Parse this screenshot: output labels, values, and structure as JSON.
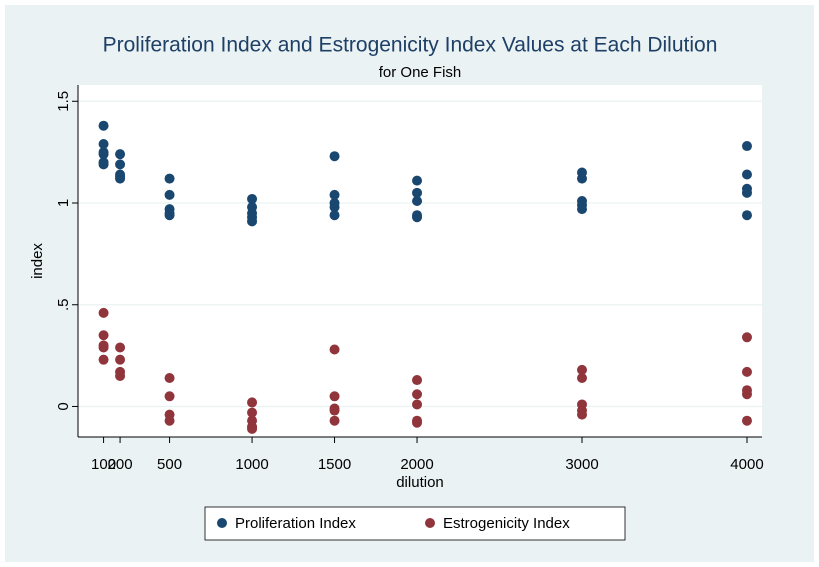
{
  "chart_data": {
    "type": "scatter",
    "title": "Proliferation Index and Estrogenicity Index Values at Each Dilution",
    "subtitle": "for One Fish",
    "x_label": "dilution",
    "y_label": "index",
    "xlim": [
      -55,
      4091
    ],
    "ylim": [
      -0.15,
      1.58
    ],
    "xticks": [
      100,
      200,
      500,
      1000,
      1500,
      2000,
      3000,
      4000
    ],
    "yticks": [
      0,
      {
        "value": 0.5,
        "label": ".5"
      },
      1,
      1.5
    ],
    "grid": true,
    "legend": "bottom",
    "series": [
      {
        "name": "Proliferation Index",
        "color": "#1a476f",
        "x": [
          100,
          100,
          100,
          100,
          100,
          100,
          200,
          200,
          200,
          200,
          200,
          500,
          500,
          500,
          500,
          500,
          1000,
          1000,
          1000,
          1000,
          1000,
          1500,
          1500,
          1500,
          1500,
          1500,
          2000,
          2000,
          2000,
          2000,
          2000,
          3000,
          3000,
          3000,
          3000,
          3000,
          4000,
          4000,
          4000,
          4000,
          4000
        ],
        "values": [
          1.38,
          1.29,
          1.25,
          1.24,
          1.2,
          1.19,
          1.24,
          1.19,
          1.14,
          1.13,
          1.12,
          1.12,
          1.04,
          0.97,
          0.95,
          0.94,
          1.02,
          0.98,
          0.95,
          0.93,
          0.91,
          1.23,
          1.04,
          1.0,
          0.98,
          0.94,
          1.11,
          1.05,
          1.01,
          0.94,
          0.93,
          1.15,
          1.12,
          1.01,
          0.99,
          0.97,
          1.28,
          1.14,
          1.07,
          1.05,
          0.94
        ]
      },
      {
        "name": "Estrogenicity Index",
        "color": "#90353b",
        "x": [
          100,
          100,
          100,
          100,
          100,
          200,
          200,
          200,
          200,
          500,
          500,
          500,
          500,
          1000,
          1000,
          1000,
          1000,
          1000,
          1500,
          1500,
          1500,
          1500,
          1500,
          2000,
          2000,
          2000,
          2000,
          2000,
          3000,
          3000,
          3000,
          3000,
          3000,
          4000,
          4000,
          4000,
          4000,
          4000
        ],
        "values": [
          0.46,
          0.35,
          0.3,
          0.29,
          0.23,
          0.29,
          0.23,
          0.17,
          0.15,
          0.14,
          0.05,
          -0.04,
          -0.07,
          0.02,
          -0.03,
          -0.07,
          -0.1,
          -0.11,
          0.28,
          0.05,
          -0.01,
          -0.02,
          -0.07,
          0.13,
          0.06,
          0.01,
          -0.07,
          -0.08,
          0.18,
          0.14,
          0.01,
          -0.02,
          -0.04,
          0.34,
          0.17,
          0.08,
          0.06,
          -0.07
        ]
      }
    ]
  }
}
